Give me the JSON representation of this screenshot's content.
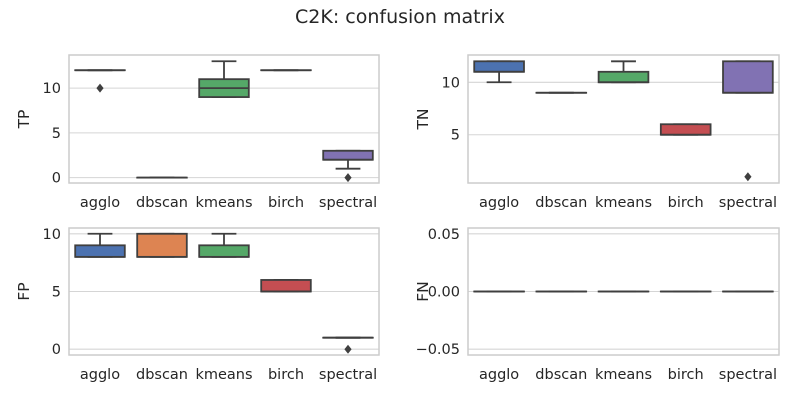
{
  "figure": {
    "title": "C2K: confusion matrix"
  },
  "chart_data": [
    {
      "type": "box",
      "ylabel": "TP",
      "categories": [
        "agglo",
        "dbscan",
        "kmeans",
        "birch",
        "spectral"
      ],
      "ylim": [
        -0.6,
        13.7
      ],
      "yticks": [
        0,
        5,
        10
      ],
      "ytick_labels": [
        "0",
        "5",
        "10"
      ],
      "grid": true,
      "colors": [
        "#4c72b0",
        "#dd8452",
        "#55a868",
        "#c44e52",
        "#8172b3"
      ],
      "boxes": [
        {
          "category": "agglo",
          "q1": 12,
          "median": 12,
          "q3": 12,
          "whislo": 12,
          "whishi": 12,
          "fliers": [
            10
          ]
        },
        {
          "category": "dbscan",
          "q1": 0,
          "median": 0,
          "q3": 0,
          "whislo": 0,
          "whishi": 0,
          "fliers": []
        },
        {
          "category": "kmeans",
          "q1": 9,
          "median": 10,
          "q3": 11,
          "whislo": 9,
          "whishi": 13,
          "fliers": []
        },
        {
          "category": "birch",
          "q1": 12,
          "median": 12,
          "q3": 12,
          "whislo": 12,
          "whishi": 12,
          "fliers": []
        },
        {
          "category": "spectral",
          "q1": 2,
          "median": 2,
          "q3": 3,
          "whislo": 1,
          "whishi": 3,
          "fliers": [
            0
          ]
        }
      ]
    },
    {
      "type": "box",
      "ylabel": "TN",
      "categories": [
        "agglo",
        "dbscan",
        "kmeans",
        "birch",
        "spectral"
      ],
      "ylim": [
        0.4,
        12.6
      ],
      "yticks": [
        5,
        10
      ],
      "ytick_labels": [
        "5",
        "10"
      ],
      "grid": true,
      "colors": [
        "#4c72b0",
        "#dd8452",
        "#55a868",
        "#c44e52",
        "#8172b3"
      ],
      "boxes": [
        {
          "category": "agglo",
          "q1": 11,
          "median": 11,
          "q3": 12,
          "whislo": 10,
          "whishi": 12,
          "fliers": []
        },
        {
          "category": "dbscan",
          "q1": 9,
          "median": 9,
          "q3": 9,
          "whislo": 9,
          "whishi": 9,
          "fliers": []
        },
        {
          "category": "kmeans",
          "q1": 10,
          "median": 10,
          "q3": 11,
          "whislo": 10,
          "whishi": 12,
          "fliers": []
        },
        {
          "category": "birch",
          "q1": 5,
          "median": 5,
          "q3": 6,
          "whislo": 5,
          "whishi": 6,
          "fliers": []
        },
        {
          "category": "spectral",
          "q1": 9,
          "median": 9,
          "q3": 12,
          "whislo": 9,
          "whishi": 12,
          "fliers": [
            1
          ]
        }
      ]
    },
    {
      "type": "box",
      "ylabel": "FP",
      "categories": [
        "agglo",
        "dbscan",
        "kmeans",
        "birch",
        "spectral"
      ],
      "ylim": [
        -0.5,
        10.5
      ],
      "yticks": [
        0,
        5,
        10
      ],
      "ytick_labels": [
        "0",
        "5",
        "10"
      ],
      "grid": true,
      "colors": [
        "#4c72b0",
        "#dd8452",
        "#55a868",
        "#c44e52",
        "#8172b3"
      ],
      "boxes": [
        {
          "category": "agglo",
          "q1": 8,
          "median": 8,
          "q3": 9,
          "whislo": 8,
          "whishi": 10,
          "fliers": []
        },
        {
          "category": "dbscan",
          "q1": 8,
          "median": 8,
          "q3": 10,
          "whislo": 8,
          "whishi": 10,
          "fliers": []
        },
        {
          "category": "kmeans",
          "q1": 8,
          "median": 8,
          "q3": 9,
          "whislo": 8,
          "whishi": 10,
          "fliers": []
        },
        {
          "category": "birch",
          "q1": 5,
          "median": 5,
          "q3": 6,
          "whislo": 5,
          "whishi": 6,
          "fliers": []
        },
        {
          "category": "spectral",
          "q1": 1,
          "median": 1,
          "q3": 1,
          "whislo": 1,
          "whishi": 1,
          "fliers": [
            0
          ]
        }
      ]
    },
    {
      "type": "box",
      "ylabel": "FN",
      "categories": [
        "agglo",
        "dbscan",
        "kmeans",
        "birch",
        "spectral"
      ],
      "ylim": [
        -0.055,
        0.055
      ],
      "yticks": [
        -0.05,
        0.0,
        0.05
      ],
      "ytick_labels": [
        "−0.05",
        "0.00",
        "0.05"
      ],
      "grid": true,
      "colors": [
        "#4c72b0",
        "#dd8452",
        "#55a868",
        "#c44e52",
        "#8172b3"
      ],
      "boxes": [
        {
          "category": "agglo",
          "q1": 0,
          "median": 0,
          "q3": 0,
          "whislo": 0,
          "whishi": 0,
          "fliers": []
        },
        {
          "category": "dbscan",
          "q1": 0,
          "median": 0,
          "q3": 0,
          "whislo": 0,
          "whishi": 0,
          "fliers": []
        },
        {
          "category": "kmeans",
          "q1": 0,
          "median": 0,
          "q3": 0,
          "whislo": 0,
          "whishi": 0,
          "fliers": []
        },
        {
          "category": "birch",
          "q1": 0,
          "median": 0,
          "q3": 0,
          "whislo": 0,
          "whishi": 0,
          "fliers": []
        },
        {
          "category": "spectral",
          "q1": 0,
          "median": 0,
          "q3": 0,
          "whislo": 0,
          "whishi": 0,
          "fliers": []
        }
      ]
    }
  ]
}
